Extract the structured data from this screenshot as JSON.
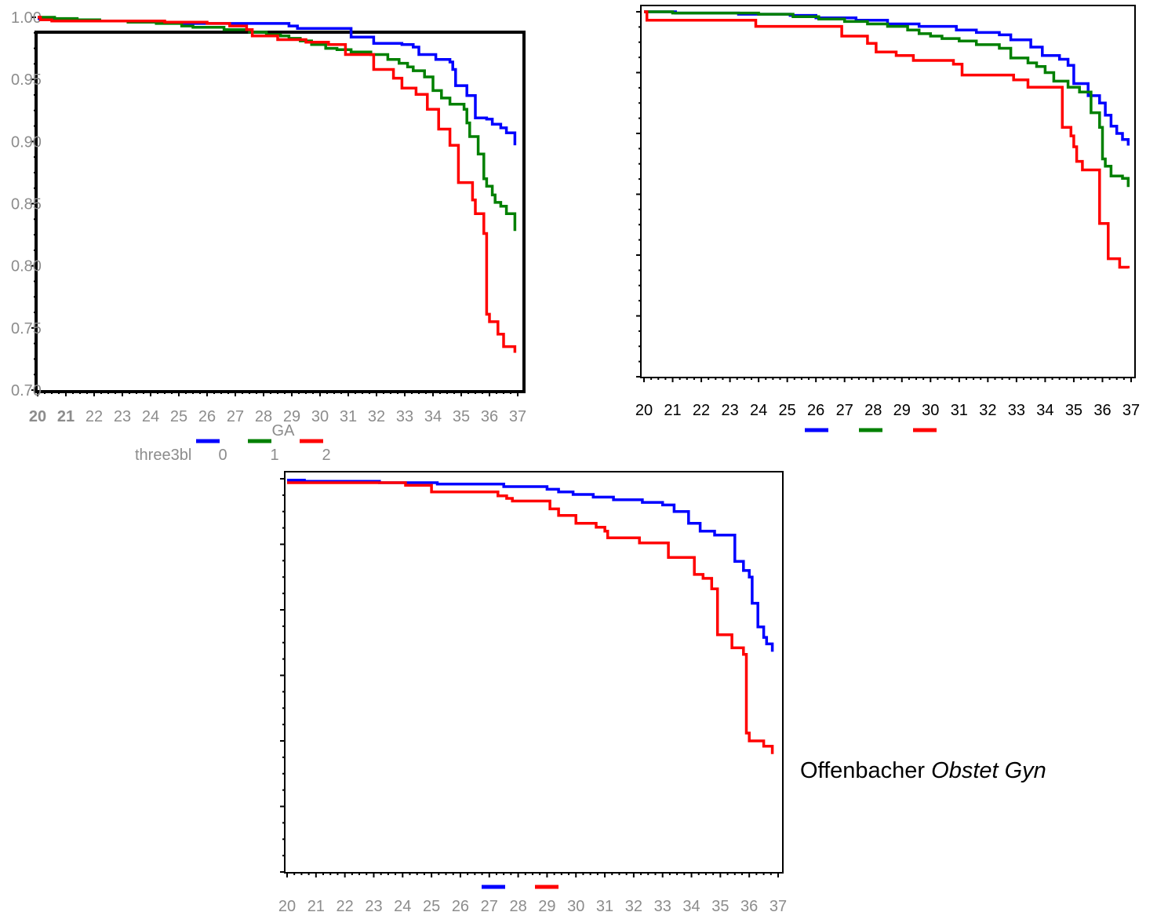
{
  "citation": {
    "author": "Offenbacher",
    "journal": "Obstet Gyn"
  },
  "chart_data": [
    {
      "type": "line",
      "step": true,
      "xlabel": "GA",
      "ylabel": "",
      "xlim": [
        20,
        37
      ],
      "ylim": [
        0.7,
        1.0
      ],
      "x_ticks": [
        "20",
        "21",
        "22",
        "23",
        "24",
        "25",
        "26",
        "27",
        "28",
        "29",
        "30",
        "31",
        "32",
        "33",
        "34",
        "35",
        "36",
        "37"
      ],
      "y_ticks": [
        "0.70",
        "0.75",
        "0.80",
        "0.85",
        "0.90",
        "0.95",
        "1.00"
      ],
      "legend": {
        "title": "three3bl",
        "placement": "bottom",
        "entries": [
          "0",
          "1",
          "2"
        ]
      },
      "series": [
        {
          "name": "0",
          "color": "#0000ff",
          "x": [
            20,
            20.1,
            21.9,
            23.8,
            25.1,
            28.2,
            28.9,
            29.2,
            31.1,
            31.9,
            32.9,
            33.3,
            33.5,
            34.1,
            34.6,
            34.7,
            34.8,
            35.2,
            35.5,
            35.9,
            36.1,
            36.4,
            36.6,
            36.9
          ],
          "y": [
            0.999,
            0.998,
            0.997,
            0.996,
            0.995,
            0.995,
            0.993,
            0.991,
            0.984,
            0.979,
            0.978,
            0.976,
            0.97,
            0.966,
            0.964,
            0.958,
            0.945,
            0.937,
            0.919,
            0.918,
            0.914,
            0.911,
            0.907,
            0.897
          ]
        },
        {
          "name": "1",
          "color": "#008000",
          "x": [
            20,
            20.6,
            21.4,
            22.2,
            23.2,
            24.2,
            25.1,
            25.5,
            26.6,
            27.5,
            28.1,
            28.6,
            28.9,
            29.3,
            29.7,
            30.2,
            30.6,
            31.1,
            31.8,
            32.4,
            32.8,
            33.1,
            33.3,
            33.7,
            34.0,
            34.3,
            34.6,
            35.1,
            35.2,
            35.3,
            35.6,
            35.8,
            35.9,
            36.1,
            36.2,
            36.4,
            36.6,
            36.9
          ],
          "y": [
            1.0,
            0.999,
            0.998,
            0.997,
            0.996,
            0.995,
            0.993,
            0.992,
            0.99,
            0.988,
            0.986,
            0.985,
            0.983,
            0.981,
            0.978,
            0.975,
            0.974,
            0.972,
            0.97,
            0.966,
            0.963,
            0.96,
            0.957,
            0.952,
            0.941,
            0.935,
            0.93,
            0.926,
            0.915,
            0.904,
            0.89,
            0.87,
            0.864,
            0.857,
            0.851,
            0.848,
            0.842,
            0.828
          ]
        },
        {
          "name": "2",
          "color": "#ff0000",
          "x": [
            20,
            20.1,
            20.5,
            22.6,
            24.5,
            26.0,
            26.8,
            27.4,
            27.6,
            28.5,
            29.5,
            30.3,
            30.9,
            31.9,
            32.6,
            32.9,
            33.4,
            33.8,
            34.2,
            34.6,
            34.9,
            35.4,
            35.5,
            35.8,
            35.9,
            36.0,
            36.3,
            36.5,
            36.9
          ],
          "y": [
            1.0,
            0.998,
            0.997,
            0.997,
            0.996,
            0.995,
            0.993,
            0.99,
            0.985,
            0.982,
            0.98,
            0.978,
            0.97,
            0.958,
            0.951,
            0.943,
            0.938,
            0.926,
            0.91,
            0.897,
            0.867,
            0.853,
            0.842,
            0.826,
            0.761,
            0.755,
            0.745,
            0.735,
            0.73
          ]
        }
      ]
    },
    {
      "type": "line",
      "step": true,
      "xlabel": "",
      "ylabel": "",
      "xlim": [
        20,
        37
      ],
      "ylim": [
        0.7,
        1.0
      ],
      "x_ticks": [
        "20",
        "21",
        "22",
        "23",
        "24",
        "25",
        "26",
        "27",
        "28",
        "29",
        "30",
        "31",
        "32",
        "33",
        "34",
        "35",
        "36",
        "37"
      ],
      "y_ticks": [],
      "legend": {
        "placement": "bottom",
        "entries": [
          "",
          "",
          ""
        ]
      },
      "series": [
        {
          "color": "#0000ff",
          "x": [
            20,
            21.1,
            23.3,
            25.1,
            26.0,
            27.4,
            28.5,
            29.6,
            30.9,
            31.6,
            32.4,
            32.8,
            33.5,
            33.9,
            34.5,
            34.8,
            35.0,
            35.5,
            35.9,
            36.1,
            36.3,
            36.5,
            36.7,
            36.9
          ],
          "y": [
            1.0,
            0.999,
            0.998,
            0.997,
            0.995,
            0.993,
            0.99,
            0.988,
            0.985,
            0.983,
            0.981,
            0.977,
            0.971,
            0.964,
            0.961,
            0.956,
            0.941,
            0.931,
            0.925,
            0.915,
            0.906,
            0.9,
            0.895,
            0.89
          ]
        },
        {
          "name": "",
          "color": "#008000",
          "x": [
            20,
            21.0,
            24.0,
            25.2,
            26.1,
            27.0,
            27.8,
            28.5,
            29.2,
            29.6,
            30.0,
            30.4,
            31.0,
            31.6,
            32.4,
            32.8,
            33.4,
            33.7,
            34.0,
            34.3,
            34.8,
            35.2,
            35.6,
            35.9,
            36.0,
            36.1,
            36.3,
            36.7,
            36.9
          ],
          "y": [
            1.0,
            0.999,
            0.998,
            0.996,
            0.994,
            0.992,
            0.99,
            0.988,
            0.985,
            0.982,
            0.98,
            0.978,
            0.976,
            0.973,
            0.97,
            0.962,
            0.958,
            0.955,
            0.95,
            0.943,
            0.938,
            0.934,
            0.917,
            0.905,
            0.879,
            0.873,
            0.865,
            0.863,
            0.856
          ]
        },
        {
          "name": "",
          "color": "#ff0000",
          "x": [
            20,
            20.1,
            23.9,
            26.9,
            27.8,
            28.1,
            28.8,
            29.4,
            30.8,
            31.1,
            32.9,
            33.4,
            34.6,
            34.9,
            35.0,
            35.1,
            35.3,
            35.9,
            36.2,
            36.6,
            36.9
          ],
          "y": [
            1.0,
            0.993,
            0.988,
            0.98,
            0.974,
            0.967,
            0.964,
            0.96,
            0.957,
            0.948,
            0.944,
            0.938,
            0.905,
            0.898,
            0.889,
            0.877,
            0.87,
            0.826,
            0.797,
            0.79,
            0.789
          ]
        }
      ]
    },
    {
      "type": "line",
      "step": true,
      "xlabel": "",
      "ylabel": "",
      "xlim": [
        20,
        37
      ],
      "ylim": [
        0.7,
        1.0
      ],
      "x_ticks": [
        "20",
        "21",
        "22",
        "23",
        "24",
        "25",
        "26",
        "27",
        "28",
        "29",
        "30",
        "31",
        "32",
        "33",
        "34",
        "35",
        "36",
        "37"
      ],
      "y_ticks": [],
      "legend": {
        "placement": "bottom",
        "entries": [
          "",
          ""
        ]
      },
      "series": [
        {
          "name": "",
          "color": "#0000ff",
          "x": [
            20,
            20.6,
            23.2,
            25.2,
            27.5,
            29.0,
            29.4,
            29.9,
            30.6,
            31.3,
            32.3,
            33.0,
            33.4,
            33.9,
            34.3,
            34.8,
            35.5,
            35.8,
            36.0,
            36.1,
            36.3,
            36.5,
            36.6,
            36.8
          ],
          "y": [
            0.999,
            0.998,
            0.997,
            0.996,
            0.994,
            0.992,
            0.99,
            0.988,
            0.986,
            0.984,
            0.982,
            0.98,
            0.975,
            0.966,
            0.96,
            0.957,
            0.937,
            0.93,
            0.925,
            0.905,
            0.887,
            0.879,
            0.874,
            0.868
          ]
        },
        {
          "name": "",
          "color": "#ff0000",
          "x": [
            20,
            24.1,
            25.0,
            27.3,
            27.6,
            27.8,
            29.1,
            29.4,
            30.0,
            30.7,
            31.0,
            31.1,
            32.2,
            33.2,
            34.1,
            34.4,
            34.7,
            34.9,
            35.4,
            35.8,
            35.9,
            36.0,
            36.5,
            36.8
          ],
          "y": [
            0.997,
            0.995,
            0.99,
            0.987,
            0.985,
            0.983,
            0.977,
            0.972,
            0.966,
            0.963,
            0.96,
            0.955,
            0.951,
            0.94,
            0.927,
            0.924,
            0.916,
            0.881,
            0.871,
            0.866,
            0.806,
            0.8,
            0.796,
            0.79
          ]
        }
      ]
    }
  ]
}
